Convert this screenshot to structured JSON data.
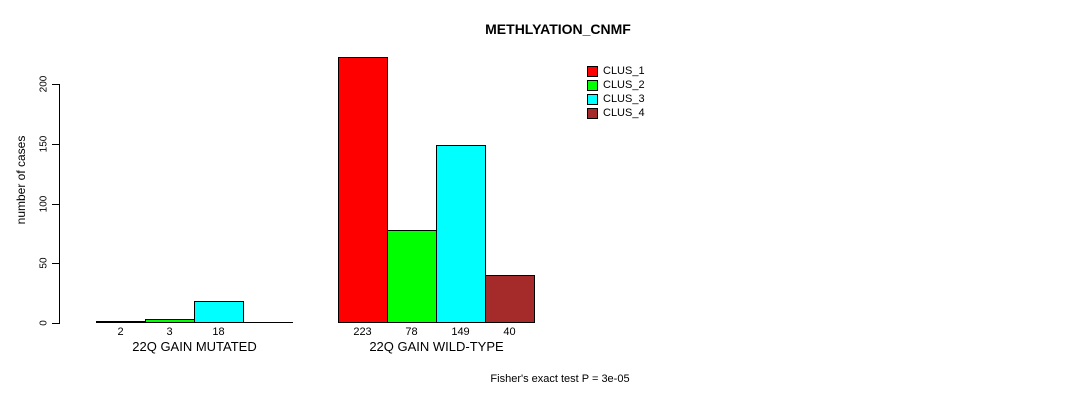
{
  "title": "METHLYATION_CNMF",
  "y_axis": {
    "label": "number of cases",
    "ticks": [
      "0",
      "50",
      "100",
      "150",
      "200"
    ]
  },
  "legend": {
    "items": [
      {
        "label": "CLUS_1",
        "color": "#FF0000"
      },
      {
        "label": "CLUS_2",
        "color": "#00FF00"
      },
      {
        "label": "CLUS_3",
        "color": "#00FFFF"
      },
      {
        "label": "CLUS_4",
        "color": "#A52A2A"
      }
    ]
  },
  "footer": {
    "text": "Fisher's exact test P = 3e-05"
  },
  "chart_data": {
    "type": "bar",
    "title": "METHLYATION_CNMF",
    "ylabel": "number of cases",
    "ylim": [
      0,
      200
    ],
    "yticks": [
      0,
      50,
      100,
      150,
      200
    ],
    "grid": false,
    "legend_position": "top-right",
    "groups": [
      "22Q GAIN MUTATED",
      "22Q GAIN WILD-TYPE"
    ],
    "series": [
      {
        "name": "CLUS_1",
        "color": "#FF0000",
        "values": [
          2,
          223
        ]
      },
      {
        "name": "CLUS_2",
        "color": "#00FF00",
        "values": [
          3,
          78
        ]
      },
      {
        "name": "CLUS_3",
        "color": "#00FFFF",
        "values": [
          18,
          149
        ]
      },
      {
        "name": "CLUS_4",
        "color": "#A52A2A",
        "values": [
          0,
          40
        ]
      }
    ],
    "bar_labels": [
      [
        "2",
        "3",
        "18",
        ""
      ],
      [
        "223",
        "78",
        "149",
        "40"
      ]
    ],
    "annotation": "Fisher's exact test P = 3e-05"
  }
}
